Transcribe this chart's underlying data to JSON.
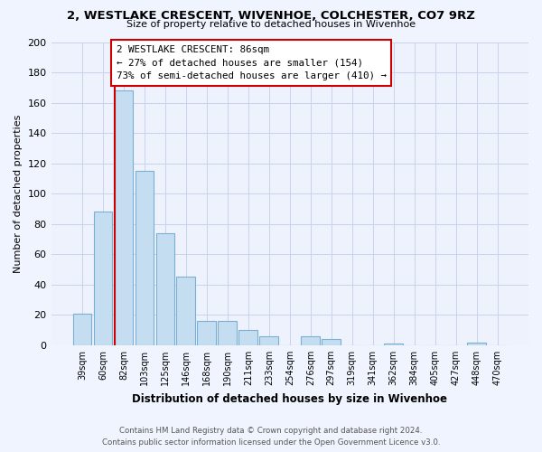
{
  "title": "2, WESTLAKE CRESCENT, WIVENHOE, COLCHESTER, CO7 9RZ",
  "subtitle": "Size of property relative to detached houses in Wivenhoe",
  "xlabel": "Distribution of detached houses by size in Wivenhoe",
  "ylabel": "Number of detached properties",
  "bar_labels": [
    "39sqm",
    "60sqm",
    "82sqm",
    "103sqm",
    "125sqm",
    "146sqm",
    "168sqm",
    "190sqm",
    "211sqm",
    "233sqm",
    "254sqm",
    "276sqm",
    "297sqm",
    "319sqm",
    "341sqm",
    "362sqm",
    "384sqm",
    "405sqm",
    "427sqm",
    "448sqm",
    "470sqm"
  ],
  "bar_values": [
    21,
    88,
    168,
    115,
    74,
    45,
    16,
    16,
    10,
    6,
    0,
    6,
    4,
    0,
    0,
    1,
    0,
    0,
    0,
    2,
    0
  ],
  "bar_color": "#c5ddf0",
  "bar_edge_color": "#7aafd4",
  "ylim": [
    0,
    200
  ],
  "yticks": [
    0,
    20,
    40,
    60,
    80,
    100,
    120,
    140,
    160,
    180,
    200
  ],
  "property_size_label": "2 WESTLAKE CRESCENT: 86sqm",
  "annotation_line1": "← 27% of detached houses are smaller (154)",
  "annotation_line2": "73% of semi-detached houses are larger (410) →",
  "box_color": "#ffffff",
  "box_edge_color": "#cc0000",
  "vline_color": "#cc0000",
  "footer_line1": "Contains HM Land Registry data © Crown copyright and database right 2024.",
  "footer_line2": "Contains public sector information licensed under the Open Government Licence v3.0.",
  "background_color": "#f0f4ff",
  "plot_bg_color": "#eef2fc",
  "grid_color": "#c8d4ec"
}
